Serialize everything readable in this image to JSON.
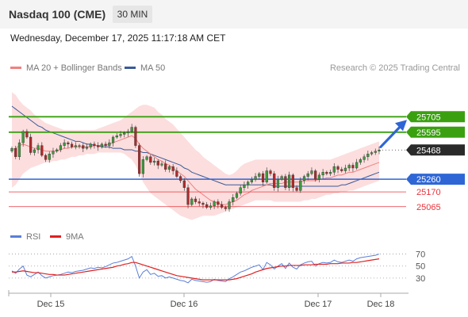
{
  "header": {
    "title": "Nasdaq 100 (CME)",
    "timeframe": "30 MIN",
    "datetime": "Wednesday, December 17, 2025 11:17:18 AM CET"
  },
  "legend": {
    "ma20_label": "MA 20 + Bollinger Bands",
    "ma50_label": "MA 50",
    "rsi_label": "RSI",
    "rsi9_label": "9MA",
    "credit": "Research © 2025 Trading Central"
  },
  "colors": {
    "ma20": "#f08080",
    "ma50": "#3a5a9a",
    "band": "#fbd3d3",
    "green": "#3aa010",
    "blue": "#2e66d6",
    "red": "#e8333a",
    "rsi": "#5a7fd8",
    "rsi9": "#e02020",
    "price_box": "#2a2a2a"
  },
  "chart_data": [
    {
      "type": "candlestick",
      "instrument": "Nasdaq 100 (CME)",
      "interval": "30 MIN",
      "x_ticks": [
        "Dec 15",
        "Dec 16",
        "Dec 17",
        "Dec 18"
      ],
      "levels": [
        {
          "value": 25705,
          "label": "25705",
          "kind": "resistance"
        },
        {
          "value": 25595,
          "label": "25595",
          "kind": "resistance"
        },
        {
          "value": 25468,
          "label": "25468",
          "kind": "last_price"
        },
        {
          "value": 25260,
          "label": "25260",
          "kind": "pivot"
        },
        {
          "value": 25170,
          "label": "25170",
          "kind": "support"
        },
        {
          "value": 25065,
          "label": "25065",
          "kind": "support"
        }
      ],
      "ylim": [
        24900,
        26000
      ],
      "close": [
        25480,
        25420,
        25520,
        25600,
        25560,
        25450,
        25470,
        25500,
        25430,
        25400,
        25440,
        25460,
        25470,
        25500,
        25520,
        25510,
        25490,
        25500,
        25500,
        25480,
        25490,
        25510,
        25500,
        25490,
        25510,
        25500,
        25520,
        25560,
        25570,
        25580,
        25590,
        25600,
        25630,
        25500,
        25300,
        25400,
        25420,
        25380,
        25390,
        25360,
        25370,
        25330,
        25350,
        25320,
        25280,
        25250,
        25200,
        25080,
        25120,
        25100,
        25090,
        25080,
        25060,
        25070,
        25100,
        25080,
        25060,
        25050,
        25100,
        25130,
        25160,
        25200,
        25220,
        25240,
        25260,
        25280,
        25300,
        25240,
        25320,
        25300,
        25200,
        25260,
        25280,
        25200,
        25290,
        25200,
        25180,
        25250,
        25280,
        25300,
        25320,
        25260,
        25290,
        25310,
        25300,
        25310,
        25350,
        25330,
        25320,
        25340,
        25360,
        25340,
        25380,
        25400,
        25420,
        25440,
        25450,
        25460,
        25468
      ],
      "ma20": [
        25470,
        25480,
        25500,
        25510,
        25500,
        25490,
        25480,
        25480,
        25470,
        25460,
        25460,
        25460,
        25460,
        25470,
        25480,
        25480,
        25490,
        25490,
        25490,
        25490,
        25490,
        25490,
        25500,
        25500,
        25500,
        25500,
        25510,
        25520,
        25530,
        25540,
        25550,
        25560,
        25570,
        25550,
        25510,
        25480,
        25460,
        25440,
        25420,
        25400,
        25390,
        25370,
        25360,
        25340,
        25320,
        25300,
        25280,
        25250,
        25220,
        25190,
        25170,
        25150,
        25130,
        25110,
        25100,
        25090,
        25080,
        25080,
        25090,
        25100,
        25110,
        25130,
        25150,
        25160,
        25180,
        25190,
        25200,
        25210,
        25220,
        25230,
        25230,
        25230,
        25230,
        25240,
        25240,
        25240,
        25240,
        25240,
        25250,
        25250,
        25250,
        25250,
        25260,
        25260,
        25270,
        25270,
        25280,
        25290,
        25290,
        25300,
        25310,
        25310,
        25320,
        25330,
        25340,
        25350,
        25360,
        25370,
        25380
      ],
      "bb_upper": [
        25880,
        25860,
        25820,
        25790,
        25770,
        25750,
        25720,
        25700,
        25680,
        25660,
        25650,
        25640,
        25630,
        25620,
        25610,
        25610,
        25610,
        25610,
        25610,
        25610,
        25610,
        25610,
        25610,
        25620,
        25630,
        25640,
        25650,
        25660,
        25670,
        25680,
        25700,
        25720,
        25740,
        25760,
        25780,
        25790,
        25790,
        25780,
        25770,
        25740,
        25720,
        25690,
        25670,
        25650,
        25620,
        25590,
        25560,
        25530,
        25500,
        25470,
        25450,
        25420,
        25400,
        25380,
        25360,
        25340,
        25320,
        25300,
        25290,
        25300,
        25320,
        25350,
        25370,
        25380,
        25390,
        25400,
        25400,
        25400,
        25400,
        25400,
        25400,
        25400,
        25400,
        25400,
        25400,
        25400,
        25400,
        25400,
        25400,
        25400,
        25400,
        25400,
        25400,
        25400,
        25400,
        25400,
        25410,
        25420,
        25430,
        25440,
        25450,
        25460,
        25470,
        25480,
        25490,
        25500,
        25510,
        25520,
        25530
      ],
      "bb_lower": [
        25200,
        25220,
        25260,
        25300,
        25320,
        25340,
        25350,
        25360,
        25370,
        25380,
        25380,
        25390,
        25390,
        25400,
        25400,
        25410,
        25420,
        25420,
        25430,
        25430,
        25440,
        25440,
        25440,
        25450,
        25450,
        25450,
        25450,
        25450,
        25450,
        25450,
        25440,
        25420,
        25400,
        25360,
        25300,
        25240,
        25200,
        25160,
        25140,
        25120,
        25100,
        25080,
        25060,
        25040,
        25020,
        25000,
        24990,
        24980,
        24970,
        24980,
        24990,
        25000,
        25000,
        25000,
        25000,
        25010,
        25020,
        25030,
        25040,
        25050,
        25060,
        25070,
        25080,
        25090,
        25100,
        25110,
        25110,
        25110,
        25110,
        25110,
        25100,
        25100,
        25100,
        25100,
        25100,
        25100,
        25100,
        25100,
        25110,
        25110,
        25120,
        25120,
        25130,
        25140,
        25150,
        25150,
        25160,
        25160,
        25170,
        25170,
        25180,
        25180,
        25190,
        25200,
        25210,
        25220,
        25230,
        25240,
        25250
      ],
      "ma50": [
        25780,
        25760,
        25740,
        25720,
        25700,
        25680,
        25660,
        25640,
        25630,
        25610,
        25600,
        25590,
        25580,
        25570,
        25560,
        25550,
        25540,
        25530,
        25530,
        25520,
        25510,
        25510,
        25500,
        25500,
        25490,
        25490,
        25490,
        25480,
        25480,
        25480,
        25470,
        25470,
        25470,
        25460,
        25460,
        25450,
        25450,
        25440,
        25430,
        25420,
        25410,
        25400,
        25390,
        25380,
        25370,
        25360,
        25340,
        25330,
        25310,
        25300,
        25290,
        25280,
        25270,
        25260,
        25250,
        25240,
        25230,
        25220,
        25220,
        25220,
        25220,
        25220,
        25220,
        25220,
        25220,
        25220,
        25220,
        25220,
        25220,
        25220,
        25210,
        25210,
        25210,
        25210,
        25210,
        25210,
        25210,
        25210,
        25210,
        25210,
        25210,
        25210,
        25210,
        25210,
        25210,
        25210,
        25210,
        25210,
        25220,
        25220,
        25230,
        25240,
        25250,
        25260,
        25270,
        25280,
        25290,
        25300,
        25310
      ]
    },
    {
      "type": "line",
      "name": "RSI",
      "ylim": [
        10,
        80
      ],
      "y_ticks": [
        70,
        50,
        30
      ],
      "series": [
        {
          "name": "RSI",
          "values": [
            42,
            38,
            45,
            50,
            35,
            32,
            36,
            40,
            34,
            30,
            32,
            34,
            35,
            36,
            38,
            40,
            39,
            41,
            42,
            43,
            45,
            47,
            46,
            48,
            47,
            49,
            52,
            55,
            56,
            58,
            60,
            62,
            66,
            50,
            30,
            40,
            44,
            36,
            38,
            33,
            34,
            30,
            32,
            30,
            28,
            26,
            25,
            22,
            28,
            26,
            25,
            24,
            23,
            24,
            28,
            26,
            25,
            24,
            29,
            32,
            36,
            40,
            42,
            45,
            48,
            50,
            52,
            44,
            56,
            52,
            45,
            50,
            54,
            46,
            55,
            48,
            45,
            52,
            55,
            57,
            58,
            50,
            54,
            56,
            55,
            56,
            60,
            57,
            56,
            58,
            60,
            58,
            62,
            64,
            65,
            66,
            67,
            68,
            70
          ]
        },
        {
          "name": "9MA",
          "values": [
            40,
            40,
            41,
            42,
            41,
            40,
            39,
            39,
            38,
            37,
            36,
            36,
            35,
            35,
            35,
            36,
            37,
            38,
            39,
            40,
            41,
            42,
            43,
            44,
            45,
            46,
            47,
            48,
            50,
            51,
            53,
            54,
            56,
            56,
            54,
            52,
            50,
            48,
            46,
            44,
            42,
            40,
            38,
            36,
            34,
            33,
            32,
            31,
            30,
            29,
            28,
            27,
            27,
            27,
            27,
            27,
            27,
            27,
            27,
            28,
            29,
            31,
            33,
            35,
            37,
            40,
            42,
            44,
            46,
            47,
            48,
            49,
            50,
            50,
            51,
            51,
            51,
            51,
            52,
            52,
            52,
            53,
            53,
            53,
            53,
            54,
            54,
            54,
            55,
            55,
            55,
            56,
            56,
            57,
            58,
            59,
            60,
            61,
            62
          ]
        }
      ]
    }
  ]
}
